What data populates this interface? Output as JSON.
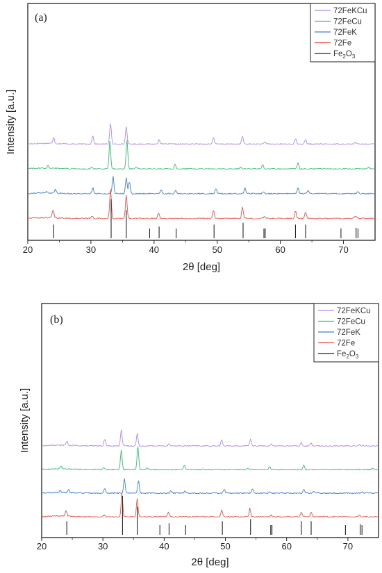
{
  "colors": {
    "72FeKCu": "#b38ae6",
    "72FeCu": "#3dbb7a",
    "72FeK": "#3f7fd9",
    "72Fe": "#e8534a",
    "Fe2O3": "#222222"
  },
  "chart_data": [
    {
      "type": "line",
      "panel_label": "(a)",
      "xlabel": "2θ [deg]",
      "ylabel": "Intensity [a.u.]",
      "xlim": [
        20,
        75
      ],
      "x_ticks": [
        20,
        30,
        40,
        50,
        60,
        70
      ],
      "legend_position": "top-right",
      "legend": [
        "72FeKCu",
        "72FeCu",
        "72FeK",
        "72Fe",
        "Fe2O3"
      ],
      "series": [
        {
          "name": "72FeKCu",
          "offset": 3.3,
          "peaks": [
            [
              24.1,
              0.22
            ],
            [
              30.3,
              0.3
            ],
            [
              33.1,
              0.72
            ],
            [
              35.6,
              0.6
            ],
            [
              40.8,
              0.16
            ],
            [
              49.4,
              0.24
            ],
            [
              54.0,
              0.28
            ],
            [
              57.5,
              0.08
            ],
            [
              62.4,
              0.18
            ],
            [
              64.0,
              0.15
            ],
            [
              71.9,
              0.06
            ]
          ]
        },
        {
          "name": "72FeCu",
          "offset": 2.45,
          "peaks": [
            [
              23.2,
              0.1
            ],
            [
              30.1,
              0.07
            ],
            [
              33.0,
              0.95
            ],
            [
              35.7,
              1.0
            ],
            [
              37.2,
              0.08
            ],
            [
              43.3,
              0.15
            ],
            [
              53.7,
              0.05
            ],
            [
              57.2,
              0.15
            ],
            [
              62.8,
              0.2
            ],
            [
              74.0,
              0.05
            ]
          ]
        },
        {
          "name": "72FeK",
          "offset": 1.6,
          "peaks": [
            [
              23.0,
              0.06
            ],
            [
              24.4,
              0.12
            ],
            [
              30.3,
              0.22
            ],
            [
              33.5,
              0.62
            ],
            [
              35.6,
              0.55
            ],
            [
              36.1,
              0.42
            ],
            [
              41.1,
              0.14
            ],
            [
              43.4,
              0.1
            ],
            [
              49.8,
              0.18
            ],
            [
              54.4,
              0.2
            ],
            [
              57.3,
              0.08
            ],
            [
              62.8,
              0.2
            ],
            [
              64.4,
              0.12
            ],
            [
              72.3,
              0.06
            ]
          ]
        },
        {
          "name": "72Fe",
          "offset": 0.75,
          "peaks": [
            [
              24.0,
              0.28
            ],
            [
              30.2,
              0.08
            ],
            [
              33.1,
              1.0
            ],
            [
              35.6,
              0.8
            ],
            [
              40.7,
              0.2
            ],
            [
              49.4,
              0.28
            ],
            [
              54.0,
              0.38
            ],
            [
              57.5,
              0.08
            ],
            [
              62.4,
              0.25
            ],
            [
              64.0,
              0.22
            ],
            [
              71.9,
              0.08
            ]
          ]
        }
      ],
      "reference": {
        "name": "Fe2O3",
        "lines": [
          [
            24.1,
            0.35
          ],
          [
            33.2,
            1.0
          ],
          [
            35.6,
            0.72
          ],
          [
            39.3,
            0.25
          ],
          [
            40.8,
            0.3
          ],
          [
            43.5,
            0.25
          ],
          [
            49.5,
            0.35
          ],
          [
            54.1,
            0.4
          ],
          [
            57.4,
            0.25
          ],
          [
            57.6,
            0.25
          ],
          [
            62.4,
            0.35
          ],
          [
            64.0,
            0.35
          ],
          [
            69.6,
            0.25
          ],
          [
            72.0,
            0.27
          ],
          [
            72.3,
            0.25
          ]
        ]
      }
    },
    {
      "type": "line",
      "panel_label": "(b)",
      "xlabel": "2θ [deg]",
      "ylabel": "Intensity [a.u.]",
      "xlim": [
        20,
        75
      ],
      "x_ticks": [
        20,
        30,
        40,
        50,
        60,
        70
      ],
      "legend_position": "top-right",
      "legend": [
        "72FeKCu",
        "72FeCu",
        "72FeK",
        "72Fe",
        "Fe2O3"
      ],
      "series": [
        {
          "name": "72FeKCu",
          "offset": 3.3,
          "peaks": [
            [
              24.1,
              0.15
            ],
            [
              30.3,
              0.25
            ],
            [
              33.0,
              0.6
            ],
            [
              35.6,
              0.45
            ],
            [
              40.8,
              0.1
            ],
            [
              49.4,
              0.22
            ],
            [
              54.1,
              0.25
            ],
            [
              57.5,
              0.06
            ],
            [
              62.4,
              0.12
            ],
            [
              64.0,
              0.12
            ],
            [
              71.9,
              0.05
            ]
          ]
        },
        {
          "name": "72FeCu",
          "offset": 2.45,
          "peaks": [
            [
              23.2,
              0.09
            ],
            [
              30.1,
              0.06
            ],
            [
              33.0,
              0.72
            ],
            [
              35.7,
              0.85
            ],
            [
              37.2,
              0.05
            ],
            [
              43.3,
              0.14
            ],
            [
              53.7,
              0.04
            ],
            [
              57.2,
              0.1
            ],
            [
              62.8,
              0.16
            ],
            [
              74.0,
              0.04
            ]
          ]
        },
        {
          "name": "72FeK",
          "offset": 1.6,
          "peaks": [
            [
              23.0,
              0.06
            ],
            [
              24.4,
              0.1
            ],
            [
              30.3,
              0.18
            ],
            [
              33.5,
              0.52
            ],
            [
              35.8,
              0.45
            ],
            [
              41.1,
              0.1
            ],
            [
              43.4,
              0.08
            ],
            [
              49.8,
              0.14
            ],
            [
              54.4,
              0.16
            ],
            [
              57.2,
              0.06
            ],
            [
              62.8,
              0.14
            ],
            [
              64.4,
              0.08
            ],
            [
              72.3,
              0.04
            ]
          ]
        },
        {
          "name": "72Fe",
          "offset": 0.75,
          "peaks": [
            [
              24.0,
              0.2
            ],
            [
              30.2,
              0.06
            ],
            [
              33.1,
              0.85
            ],
            [
              35.6,
              0.65
            ],
            [
              40.7,
              0.18
            ],
            [
              49.4,
              0.24
            ],
            [
              54.0,
              0.3
            ],
            [
              57.5,
              0.06
            ],
            [
              62.4,
              0.18
            ],
            [
              64.0,
              0.15
            ],
            [
              71.9,
              0.06
            ]
          ]
        }
      ],
      "reference": {
        "name": "Fe2O3",
        "lines": [
          [
            24.1,
            0.35
          ],
          [
            33.2,
            1.0
          ],
          [
            35.6,
            0.72
          ],
          [
            39.3,
            0.25
          ],
          [
            40.8,
            0.3
          ],
          [
            43.5,
            0.25
          ],
          [
            49.5,
            0.35
          ],
          [
            54.1,
            0.4
          ],
          [
            57.4,
            0.25
          ],
          [
            57.6,
            0.25
          ],
          [
            62.4,
            0.35
          ],
          [
            64.0,
            0.35
          ],
          [
            69.6,
            0.25
          ],
          [
            72.0,
            0.27
          ],
          [
            72.3,
            0.25
          ]
        ]
      }
    }
  ]
}
